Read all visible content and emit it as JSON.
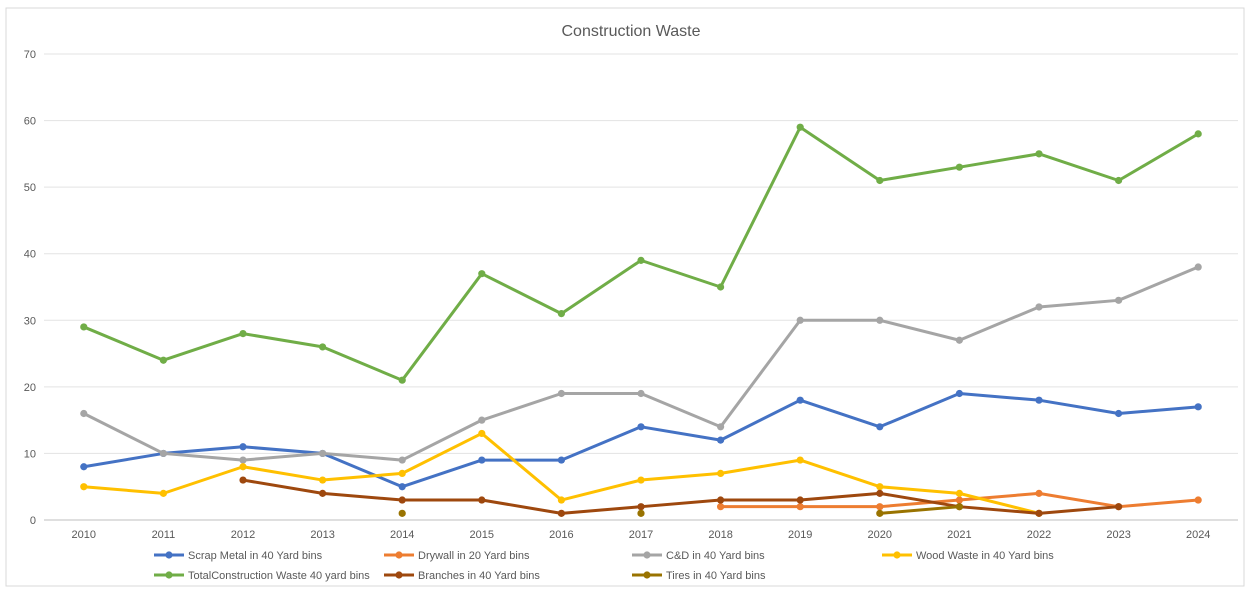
{
  "chart_data": {
    "type": "line",
    "title": "Construction Waste",
    "xlabel": "",
    "ylabel": "",
    "ylim": [
      0,
      70
    ],
    "yticks": [
      "0",
      "10",
      "20",
      "30",
      "40",
      "50",
      "60",
      "70"
    ],
    "grid": true,
    "legend_position": "bottom",
    "categories": [
      "2010",
      "2011",
      "2012",
      "2013",
      "2014",
      "2015",
      "2016",
      "2017",
      "2018",
      "2019",
      "2020",
      "2021",
      "2022",
      "2023",
      "2024"
    ],
    "series": [
      {
        "name": "Scrap Metal in 40 Yard bins",
        "color": "#4472C4",
        "values": [
          8,
          10,
          11,
          10,
          5,
          9,
          9,
          14,
          12,
          18,
          14,
          19,
          18,
          16,
          17
        ]
      },
      {
        "name": "Drywall in 20 Yard bins",
        "color": "#ED7D31",
        "values": [
          null,
          null,
          null,
          null,
          null,
          null,
          null,
          null,
          2,
          2,
          2,
          3,
          4,
          2,
          3
        ]
      },
      {
        "name": "C&D in 40 Yard bins",
        "color": "#A5A5A5",
        "values": [
          16,
          10,
          9,
          10,
          9,
          15,
          19,
          19,
          14,
          30,
          30,
          27,
          32,
          33,
          38
        ]
      },
      {
        "name": "Wood Waste in 40 Yard bins",
        "color": "#FFC000",
        "values": [
          5,
          4,
          8,
          6,
          7,
          13,
          3,
          6,
          7,
          9,
          5,
          4,
          1,
          null,
          null
        ]
      },
      {
        "name": "TotalConstruction Waste 40 yard bins",
        "color": "#70AD47",
        "values": [
          29,
          24,
          28,
          26,
          21,
          37,
          31,
          39,
          35,
          59,
          51,
          53,
          55,
          51,
          58
        ]
      },
      {
        "name": "Branches in 40 Yard bins",
        "color": "#9E480E",
        "values": [
          null,
          null,
          6,
          4,
          3,
          3,
          1,
          2,
          3,
          3,
          4,
          2,
          1,
          2,
          null
        ]
      },
      {
        "name": "Tires in 40 Yard bins",
        "color": "#997300",
        "values": [
          null,
          null,
          null,
          null,
          1,
          null,
          null,
          1,
          null,
          null,
          1,
          2,
          null,
          null,
          null
        ]
      }
    ]
  }
}
